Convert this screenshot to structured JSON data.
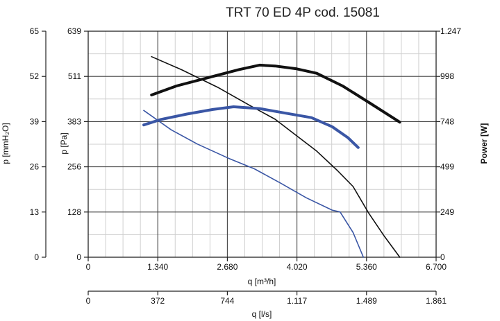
{
  "chart_data": {
    "type": "line",
    "title": "TRT 70 ED 4P cod. 15081",
    "xlabel": "q [m³/h]",
    "x2label": "q [l/s]",
    "ylabel": "p [Pa]",
    "y2label": "p [mmH₂O]",
    "y3label": "Power [W]",
    "xlim": [
      0,
      6.7
    ],
    "ylim": [
      0,
      639
    ],
    "y3lim": [
      0,
      1247
    ],
    "grid": true,
    "x_ticks": [
      "0",
      "1.340",
      "2.680",
      "4.020",
      "5.360",
      "6.700"
    ],
    "x2_ticks": [
      "0",
      "372",
      "744",
      "1.117",
      "1.489",
      "1.861"
    ],
    "y_ticks": [
      "0",
      "128",
      "256",
      "383",
      "511",
      "639"
    ],
    "y2_ticks": [
      "0",
      "13",
      "26",
      "39",
      "52",
      "65"
    ],
    "y3_ticks": [
      "0",
      "249",
      "499",
      "748",
      "998",
      "1.247"
    ],
    "series": [
      {
        "axis": "pressure",
        "color": "#111111",
        "style": "thin",
        "x": [
          1.22,
          1.8,
          2.5,
          3.1,
          3.6,
          4.0,
          4.4,
          4.8,
          5.1,
          5.4,
          5.7,
          6.0
        ],
        "y": [
          567,
          530,
          480,
          430,
          390,
          345,
          300,
          245,
          200,
          125,
          60,
          0
        ]
      },
      {
        "axis": "power",
        "color": "#111111",
        "style": "thick",
        "x": [
          1.22,
          1.7,
          2.3,
          2.9,
          3.3,
          3.6,
          4.0,
          4.4,
          4.9,
          5.4,
          6.0
        ],
        "y": [
          895,
          945,
          990,
          1035,
          1060,
          1055,
          1040,
          1015,
          945,
          855,
          745
        ]
      },
      {
        "axis": "pressure",
        "color": "#3a56a5",
        "style": "thin",
        "x": [
          1.07,
          1.6,
          2.1,
          2.7,
          3.2,
          3.7,
          4.2,
          4.7,
          4.85,
          5.1,
          5.3
        ],
        "y": [
          415,
          360,
          320,
          280,
          250,
          210,
          168,
          133,
          128,
          70,
          0
        ]
      },
      {
        "axis": "power",
        "color": "#3a56a5",
        "style": "thick",
        "x": [
          1.07,
          1.4,
          1.9,
          2.4,
          2.8,
          3.3,
          3.8,
          4.3,
          4.7,
          5.0,
          5.2
        ],
        "y": [
          730,
          760,
          790,
          815,
          830,
          820,
          795,
          770,
          720,
          660,
          605
        ]
      }
    ]
  }
}
